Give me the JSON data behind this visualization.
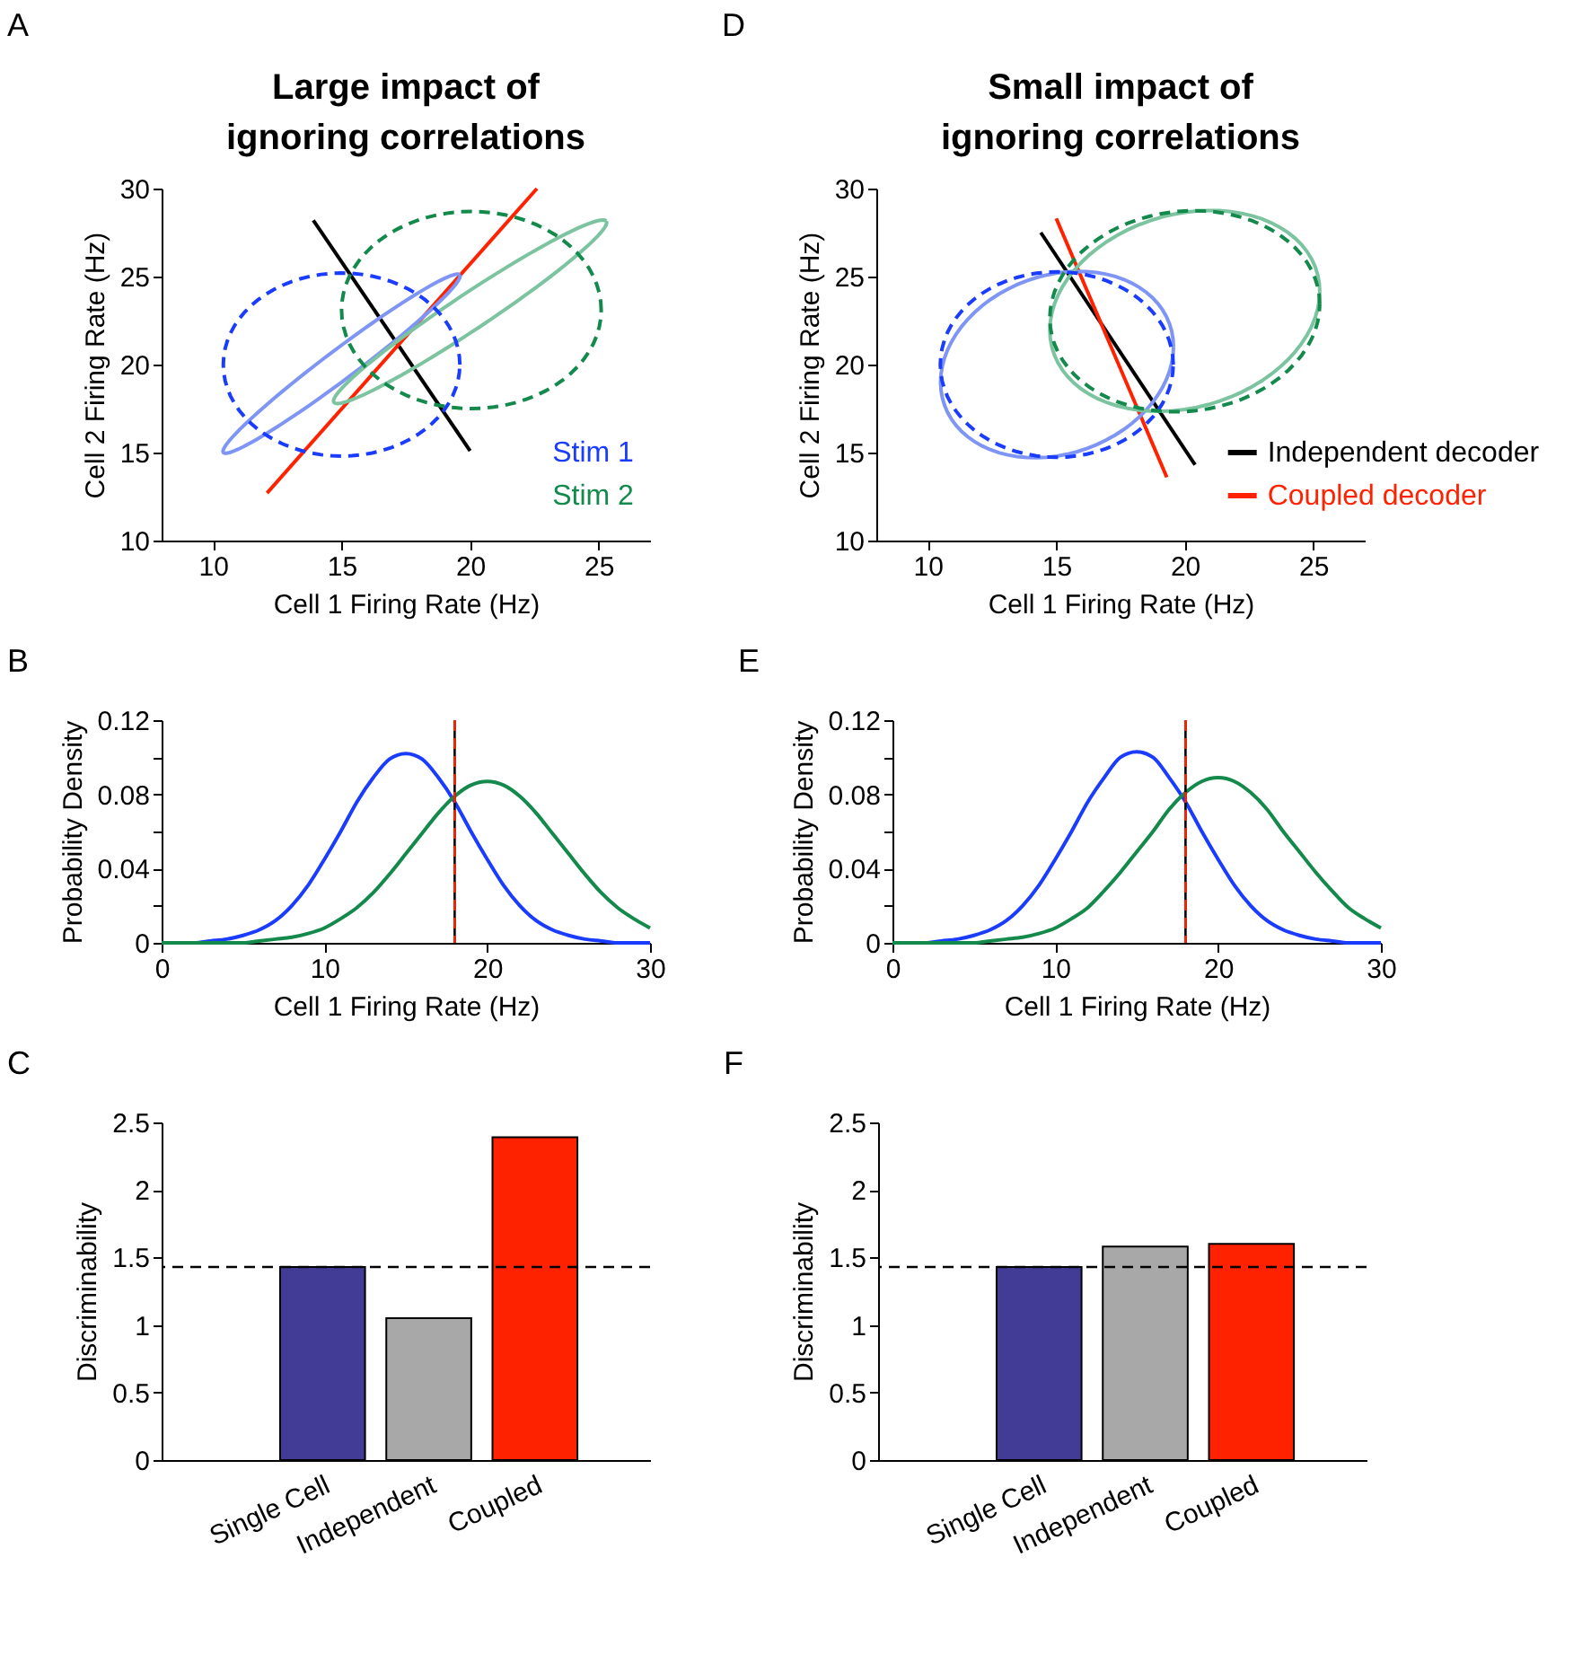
{
  "chart_data": [
    {
      "type": "line",
      "title": "Large impact of\nignoring correlations",
      "xlabel": "Cell 1 Firing Rate (Hz)",
      "ylabel": "Cell 2 Firing Rate (Hz)",
      "xlim": [
        8,
        27
      ],
      "ylim": [
        10,
        30
      ],
      "xticks": [
        10,
        15,
        20,
        25
      ],
      "yticks": [
        10,
        15,
        20,
        25,
        30
      ],
      "annotations": [
        "A",
        "Stim 1",
        "Stim 2"
      ],
      "series": [
        {
          "color": "#000000",
          "line_style": "solid",
          "x": [
            13.9,
            20.0
          ],
          "values": [
            28.2,
            15.1
          ]
        },
        {
          "color": "#ff2200",
          "line_style": "solid",
          "x": [
            12.1,
            22.6
          ],
          "values": [
            12.7,
            30.0
          ]
        }
      ]
    },
    {
      "type": "line",
      "title": "Small impact of\nignoring correlations",
      "xlabel": "Cell 1 Firing Rate (Hz)",
      "ylabel": "Cell 2 Firing Rate (Hz)",
      "xlim": [
        8,
        27
      ],
      "ylim": [
        10,
        30
      ],
      "xticks": [
        10,
        15,
        20,
        25
      ],
      "yticks": [
        10,
        15,
        20,
        25,
        30
      ],
      "legend": "bottom right",
      "annotations": [
        "D"
      ],
      "series": [
        {
          "name": "Independent decoder",
          "color": "#000000",
          "line_style": "solid",
          "x": [
            14.4,
            20.4
          ],
          "values": [
            27.5,
            14.3
          ]
        },
        {
          "name": "Coupled decoder",
          "color": "#ff2200",
          "line_style": "solid",
          "x": [
            15.0,
            19.3
          ],
          "values": [
            28.3,
            13.6
          ]
        }
      ]
    },
    {
      "type": "line",
      "xlabel": "Cell 1 Firing Rate (Hz)",
      "ylabel": "Probability Density",
      "xlim": [
        0,
        30
      ],
      "ylim": [
        0,
        0.12
      ],
      "xticks": [
        0,
        10,
        20,
        30
      ],
      "yticks": [
        0,
        {
          "value": 0.02,
          "label": null
        },
        0.04,
        {
          "value": 0.06,
          "label": null
        },
        0.08,
        {
          "value": 0.1,
          "label": null
        },
        0.12
      ],
      "annotations": [
        "B"
      ],
      "x": [
        0,
        1,
        2,
        3,
        4,
        5,
        6,
        7,
        8,
        9,
        10,
        11,
        12,
        13,
        14,
        15,
        16,
        17,
        18,
        19,
        20,
        21,
        22,
        23,
        24,
        25,
        26,
        27,
        28,
        29,
        30
      ],
      "ref_lines": [
        {
          "axis": "x",
          "value": 18,
          "color": "#000000",
          "line_style": "solid"
        },
        {
          "axis": "x",
          "value": 18,
          "color": "#ff2200",
          "line_style": "dashed"
        }
      ],
      "series": [
        {
          "color": "#1a3cff",
          "line_style": "solid",
          "values": [
            0,
            0,
            0,
            0.001,
            0.002,
            0.004,
            0.007,
            0.012,
            0.02,
            0.031,
            0.045,
            0.06,
            0.076,
            0.089,
            0.099,
            0.102,
            0.099,
            0.089,
            0.076,
            0.06,
            0.045,
            0.031,
            0.02,
            0.012,
            0.007,
            0.004,
            0.002,
            0.001,
            0,
            0,
            0
          ]
        },
        {
          "color": "#138a4b",
          "line_style": "solid",
          "values": [
            0,
            0,
            0,
            0,
            0,
            0,
            0.001,
            0.002,
            0.003,
            0.005,
            0.008,
            0.013,
            0.019,
            0.027,
            0.037,
            0.048,
            0.059,
            0.07,
            0.079,
            0.085,
            0.087,
            0.085,
            0.079,
            0.07,
            0.059,
            0.048,
            0.037,
            0.027,
            0.019,
            0.013,
            0.008
          ]
        }
      ]
    },
    {
      "type": "line",
      "xlabel": "Cell 1 Firing Rate (Hz)",
      "ylabel": "Probability Density",
      "xlim": [
        0,
        30
      ],
      "ylim": [
        0,
        0.12
      ],
      "xticks": [
        0,
        10,
        20,
        30
      ],
      "yticks": [
        0,
        {
          "value": 0.02,
          "label": null
        },
        0.04,
        {
          "value": 0.06,
          "label": null
        },
        0.08,
        {
          "value": 0.1,
          "label": null
        },
        0.12
      ],
      "annotations": [
        "E"
      ],
      "x": [
        0,
        1,
        2,
        3,
        4,
        5,
        6,
        7,
        8,
        9,
        10,
        11,
        12,
        13,
        14,
        15,
        16,
        17,
        18,
        19,
        20,
        21,
        22,
        23,
        24,
        25,
        26,
        27,
        28,
        29,
        30
      ],
      "ref_lines": [
        {
          "axis": "x",
          "value": 18,
          "color": "#000000",
          "line_style": "solid"
        },
        {
          "axis": "x",
          "value": 18,
          "color": "#ff2200",
          "line_style": "dashed"
        }
      ],
      "series": [
        {
          "color": "#1a3cff",
          "line_style": "solid",
          "values": [
            0,
            0,
            0,
            0.001,
            0.002,
            0.004,
            0.007,
            0.012,
            0.02,
            0.031,
            0.045,
            0.06,
            0.076,
            0.089,
            0.1,
            0.103,
            0.1,
            0.089,
            0.076,
            0.06,
            0.045,
            0.031,
            0.02,
            0.012,
            0.007,
            0.004,
            0.002,
            0.001,
            0,
            0,
            0
          ]
        },
        {
          "color": "#138a4b",
          "line_style": "solid",
          "values": [
            0,
            0,
            0,
            0,
            0,
            0,
            0.001,
            0.002,
            0.003,
            0.005,
            0.008,
            0.013,
            0.019,
            0.028,
            0.038,
            0.049,
            0.06,
            0.072,
            0.081,
            0.087,
            0.089,
            0.087,
            0.081,
            0.072,
            0.06,
            0.049,
            0.038,
            0.028,
            0.019,
            0.013,
            0.008
          ]
        }
      ]
    },
    {
      "type": "bar",
      "ylabel": "Discriminability",
      "categories": [
        "Single Cell",
        "Independent",
        "Coupled"
      ],
      "values": [
        1.43,
        1.05,
        2.39
      ],
      "colors": [
        "#433c96",
        "#a8a8a8",
        "#ff2200"
      ],
      "ylim": [
        0,
        2.5
      ],
      "yticks": [
        0,
        0.5,
        1,
        1.5,
        2,
        2.5
      ],
      "annotations": [
        "C"
      ],
      "ref_lines": [
        {
          "axis": "y",
          "value": 1.43,
          "color": "#000000",
          "line_style": "dashed"
        }
      ]
    },
    {
      "type": "bar",
      "ylabel": "Discriminability",
      "categories": [
        "Single Cell",
        "Independent",
        "Coupled"
      ],
      "values": [
        1.43,
        1.58,
        1.6
      ],
      "colors": [
        "#433c96",
        "#a8a8a8",
        "#ff2200"
      ],
      "ylim": [
        0,
        2.5
      ],
      "yticks": [
        0,
        0.5,
        1,
        1.5,
        2,
        2.5
      ],
      "annotations": [
        "F"
      ],
      "ref_lines": [
        {
          "axis": "y",
          "value": 1.43,
          "color": "#000000",
          "line_style": "dashed"
        }
      ]
    }
  ]
}
